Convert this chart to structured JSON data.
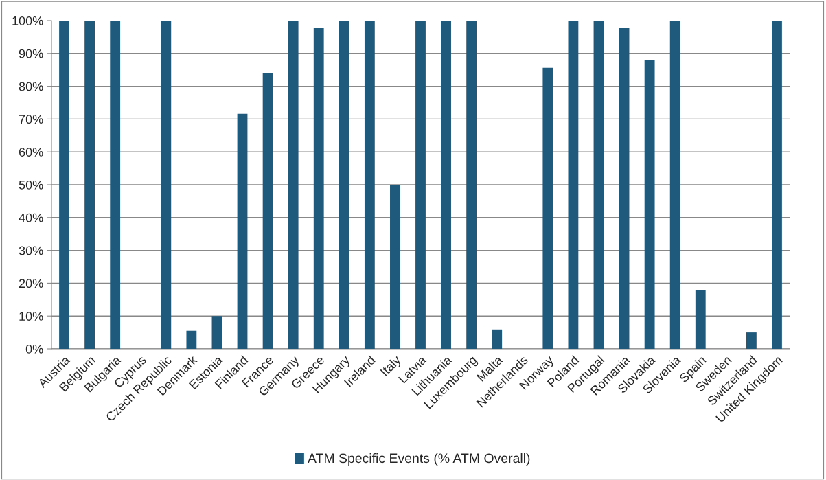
{
  "chart_data": {
    "type": "bar",
    "categories": [
      "Austria",
      "Belgium",
      "Bulgaria",
      "Cyprus",
      "Czech Republic",
      "Denmark",
      "Estonia",
      "Finland",
      "France",
      "Germany",
      "Greece",
      "Hungary",
      "Ireland",
      "Italy",
      "Latvia",
      "Lithuania",
      "Luxembourg",
      "Malta",
      "Netherlands",
      "Norway",
      "Poland",
      "Portugal",
      "Romania",
      "Slovakia",
      "Slovenia",
      "Spain",
      "Sweden",
      "Switzerland",
      "United Kingdom"
    ],
    "series": [
      {
        "name": "ATM Specific Events (% ATM Overall)",
        "color": "#1f5a7d",
        "values": [
          100,
          100,
          100,
          null,
          100,
          5.5,
          10,
          71.6,
          83.9,
          100,
          97.7,
          100,
          100,
          50,
          100,
          100,
          100,
          5.9,
          null,
          85.6,
          100,
          100,
          97.7,
          88.1,
          100,
          17.9,
          null,
          5.0,
          100
        ]
      }
    ],
    "ylim": [
      0,
      100
    ],
    "yticks": [
      {
        "value": 0,
        "label": "0%"
      },
      {
        "value": 10,
        "label": "10%"
      },
      {
        "value": 20,
        "label": "20%"
      },
      {
        "value": 30,
        "label": "30%"
      },
      {
        "value": 40,
        "label": "40%"
      },
      {
        "value": 50,
        "label": "50%"
      },
      {
        "value": 60,
        "label": "60%"
      },
      {
        "value": 70,
        "label": "70%"
      },
      {
        "value": 80,
        "label": "80%"
      },
      {
        "value": 90,
        "label": "90%"
      },
      {
        "value": 100,
        "label": "100%"
      }
    ],
    "grid": "y",
    "legend": "bottom"
  }
}
